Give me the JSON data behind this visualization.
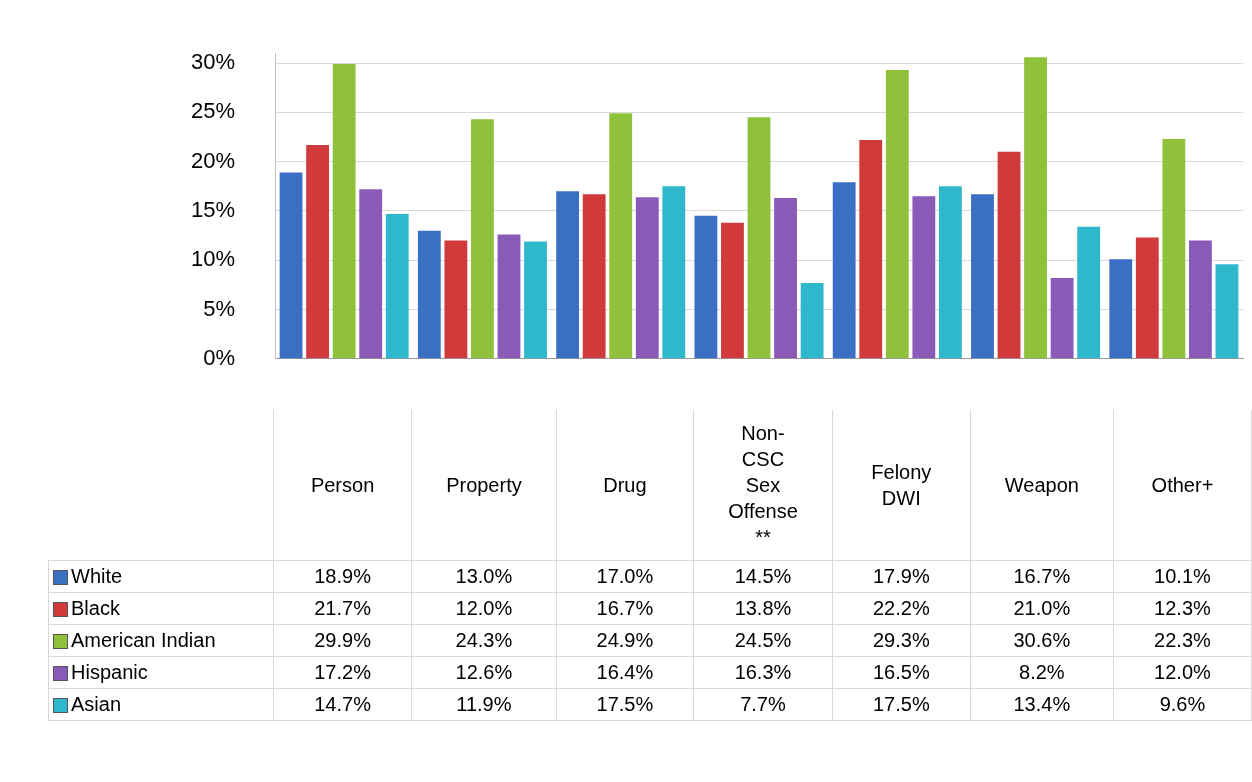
{
  "chart_data": {
    "type": "bar",
    "categories": [
      "Person",
      "Property",
      "Drug",
      "Non-CSC Sex Offense **",
      "Felony DWI",
      "Weapon",
      "Other+"
    ],
    "series": [
      {
        "name": "White",
        "color": "#3a6fc4",
        "values": [
          18.9,
          13.0,
          17.0,
          14.5,
          17.9,
          16.7,
          10.1
        ],
        "value_labels": [
          "18.9%",
          "13.0%",
          "17.0%",
          "14.5%",
          "17.9%",
          "16.7%",
          "10.1%"
        ]
      },
      {
        "name": "Black",
        "color": "#d03a3a",
        "values": [
          21.7,
          12.0,
          16.7,
          13.8,
          22.2,
          21.0,
          12.3
        ],
        "value_labels": [
          "21.7%",
          "12.0%",
          "16.7%",
          "13.8%",
          "22.2%",
          "21.0%",
          "12.3%"
        ]
      },
      {
        "name": "American Indian",
        "color": "#8fc23a",
        "values": [
          29.9,
          24.3,
          24.9,
          24.5,
          29.3,
          30.6,
          22.3
        ],
        "value_labels": [
          "29.9%",
          "24.3%",
          "24.9%",
          "24.5%",
          "29.3%",
          "30.6%",
          "22.3%"
        ]
      },
      {
        "name": "Hispanic",
        "color": "#8a5ab8",
        "values": [
          17.2,
          12.6,
          16.4,
          16.3,
          16.5,
          8.2,
          12.0
        ],
        "value_labels": [
          "17.2%",
          "12.6%",
          "16.4%",
          "16.3%",
          "16.5%",
          "8.2%",
          "12.0%"
        ]
      },
      {
        "name": "Asian",
        "color": "#2fb8cc",
        "values": [
          14.7,
          11.9,
          17.5,
          7.7,
          17.5,
          13.4,
          9.6
        ],
        "value_labels": [
          "14.7%",
          "11.9%",
          "17.5%",
          "7.7%",
          "17.5%",
          "13.4%",
          "9.6%"
        ]
      }
    ],
    "ylim": [
      0,
      31
    ],
    "yticks": [
      {
        "value": 0,
        "label": "0%"
      },
      {
        "value": 5,
        "label": "5%"
      },
      {
        "value": 10,
        "label": "10%"
      },
      {
        "value": 15,
        "label": "15%"
      },
      {
        "value": 20,
        "label": "20%"
      },
      {
        "value": 25,
        "label": "25%"
      },
      {
        "value": 30,
        "label": "30%"
      }
    ],
    "grid": "y",
    "legend": "bottom left"
  }
}
